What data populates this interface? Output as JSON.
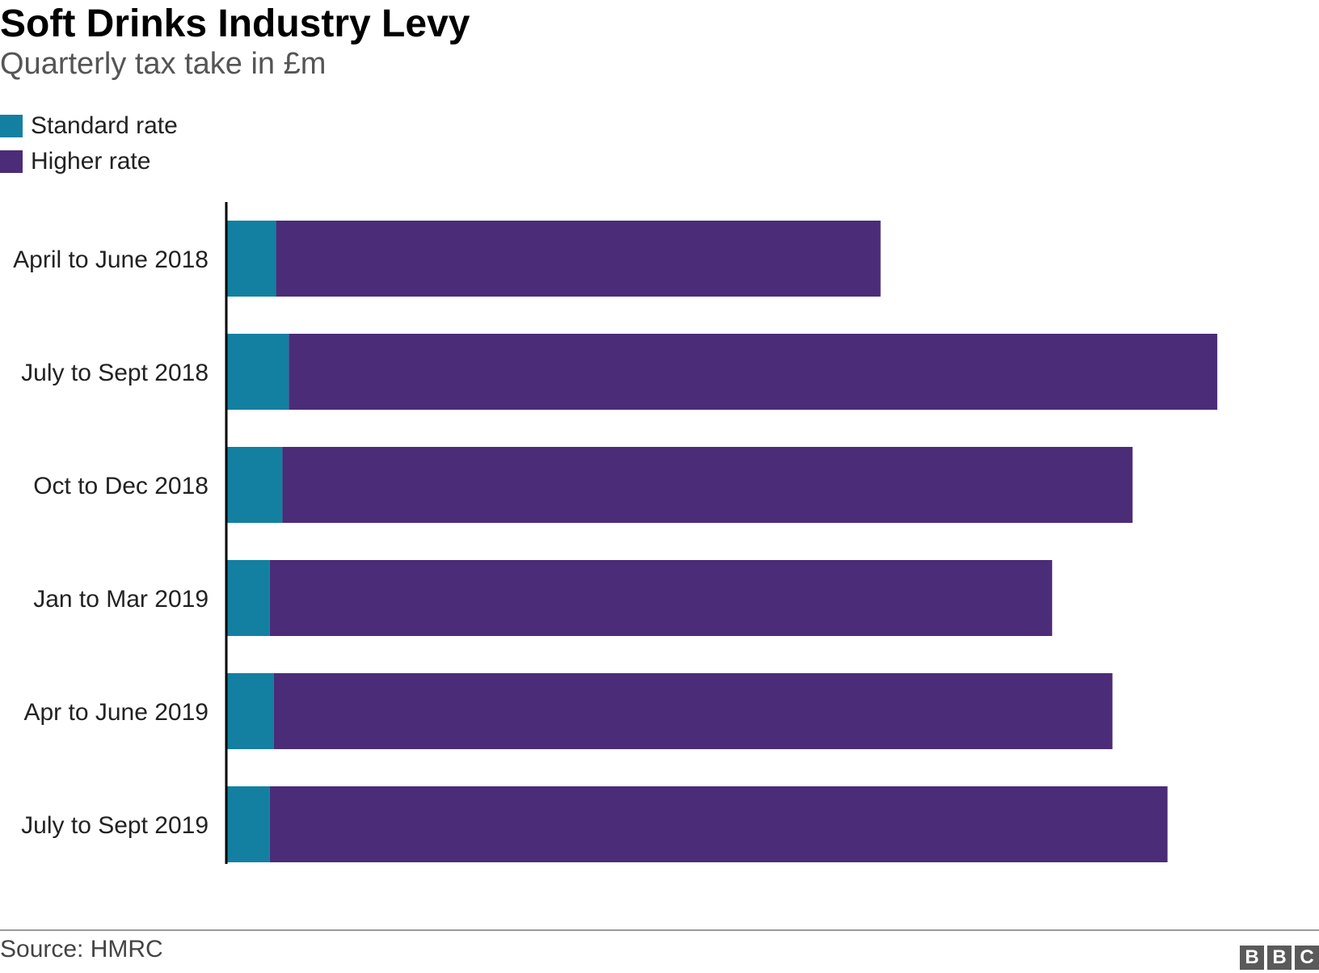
{
  "header": {
    "title": "Soft Drinks Industry Levy",
    "subtitle": "Quarterly tax take in £m"
  },
  "legend": {
    "items": [
      {
        "label": "Standard rate",
        "color": "#1380A1"
      },
      {
        "label": "Higher rate",
        "color": "#4B2C78"
      }
    ]
  },
  "chart_data": {
    "type": "bar",
    "orientation": "horizontal",
    "stacked": true,
    "categories": [
      "April to June 2018",
      "July to Sept 2018",
      "Oct to Dec 2018",
      "Jan to Mar 2019",
      "Apr to June 2019",
      "July to Sept 2019"
    ],
    "series": [
      {
        "name": "Standard rate",
        "color": "#1380A1",
        "values": [
          4.7,
          5.9,
          5.3,
          4.1,
          4.5,
          4.1
        ]
      },
      {
        "name": "Higher rate",
        "color": "#4B2C78",
        "values": [
          57.1,
          87.7,
          80.3,
          73.9,
          79.2,
          84.8
        ]
      }
    ],
    "title": "Soft Drinks Industry Levy",
    "subtitle": "Quarterly tax take in £m",
    "xlim": [
      0,
      100
    ],
    "xticks": [
      0,
      10,
      20,
      30,
      40,
      50,
      60,
      70,
      80,
      90,
      100
    ],
    "xlabel": "",
    "ylabel": "",
    "grid": false,
    "legend_position": "top-left"
  },
  "footer": {
    "source": "Source: HMRC",
    "logo_letters": [
      "B",
      "B",
      "C"
    ]
  }
}
